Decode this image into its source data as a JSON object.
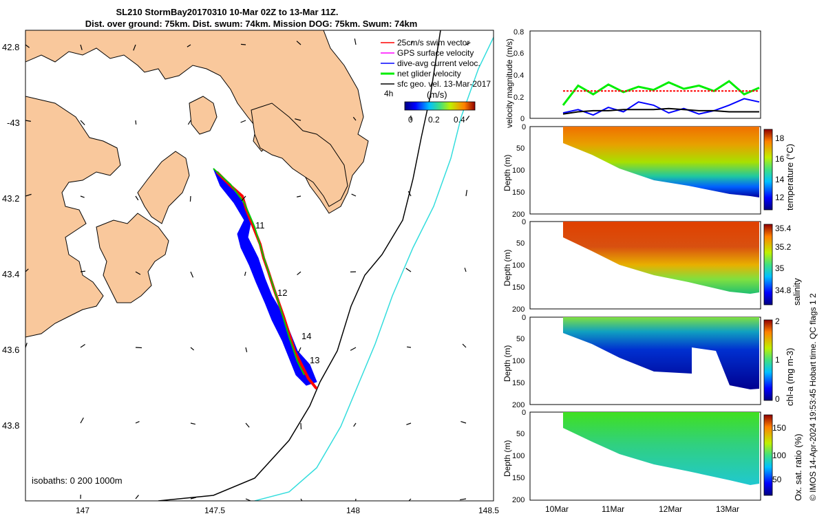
{
  "header": {
    "title_line1": "SL210 StormBay20170310 10-Mar 02Z to 13-Mar 11Z.",
    "title_line2": "Dist. over ground: 75km. Dist. swum: 74km. Mission DOG: 75km. Swum: 74km"
  },
  "colors": {
    "land": "#f9c89c",
    "track_red": "#ff0000",
    "track_blue": "#0000ff",
    "net_green": "#00ee00",
    "isobath_200": "#000000",
    "isobath_1000": "#33dddd"
  },
  "map": {
    "lon_ticks": [
      "147",
      "147.5",
      "148",
      "148.5"
    ],
    "lat_ticks": [
      "42.8",
      "-43",
      "43.2",
      "43.4",
      "43.6",
      "43.8"
    ],
    "isobaths_note": "isobaths: 0   200  1000m",
    "waypoint_labels": [
      "11",
      "12",
      "14",
      "13"
    ],
    "legend": [
      {
        "label": "25cm/s swim vector",
        "color": "#ff0000"
      },
      {
        "label": "GPS surface velocity",
        "color": "#ff00ff"
      },
      {
        "label": "dive-avg current veloc.",
        "color": "#0000ff"
      },
      {
        "label": "net glider velocity",
        "color": "#00ee00"
      },
      {
        "label": "sfc geo. vel. 13-Mar-2017",
        "color": "#000000"
      }
    ],
    "legend_extra": "4h",
    "colorbar_label": "(m/s)",
    "colorbar_ticks": [
      "0",
      "0.2",
      "0.4"
    ]
  },
  "chart_data": [
    {
      "type": "line",
      "title": "",
      "ylabel": "velocity magnitude (m/s)",
      "ylim": [
        0,
        0.8
      ],
      "yticks": [
        "0",
        "0.2",
        "0.4",
        "0.6",
        "0.8"
      ],
      "x": [
        0,
        0.25,
        0.5,
        0.75,
        1.0,
        1.25,
        1.5,
        1.75,
        2.0,
        2.25,
        2.5,
        2.75,
        3.0,
        3.25
      ],
      "series": [
        {
          "name": "net glider velocity",
          "color": "#00ee00",
          "values": [
            0.12,
            0.3,
            0.22,
            0.31,
            0.24,
            0.29,
            0.26,
            0.33,
            0.27,
            0.3,
            0.25,
            0.34,
            0.22,
            0.28
          ]
        },
        {
          "name": "25cm/s swim vector",
          "color": "#ff0000",
          "values": [
            0.25,
            0.25,
            0.25,
            0.25,
            0.25,
            0.25,
            0.25,
            0.25,
            0.25,
            0.25,
            0.25,
            0.25,
            0.25,
            0.25
          ]
        },
        {
          "name": "dive-avg current veloc.",
          "color": "#0000ff",
          "values": [
            0.05,
            0.08,
            0.03,
            0.1,
            0.06,
            0.15,
            0.12,
            0.05,
            0.09,
            0.04,
            0.07,
            0.12,
            0.18,
            0.15
          ]
        },
        {
          "name": "sfc geo. vel. 13-Mar-2017",
          "color": "#000000",
          "values": [
            0.04,
            0.06,
            0.07,
            0.07,
            0.08,
            0.08,
            0.08,
            0.09,
            0.08,
            0.07,
            0.07,
            0.06,
            0.06,
            0.06
          ]
        }
      ]
    },
    {
      "type": "heatmap",
      "ylabel": "Depth (m)",
      "colorbar_label": "temperature (°C)",
      "colorbar_ticks": [
        "12",
        "14",
        "16",
        "18"
      ],
      "ylim": [
        0,
        200
      ],
      "yticks": [
        "0",
        "50",
        "100",
        "150",
        "200"
      ]
    },
    {
      "type": "heatmap",
      "ylabel": "Depth (m)",
      "colorbar_label": "salinity",
      "colorbar_ticks": [
        "34.8",
        "35",
        "35.2",
        "35.4"
      ],
      "ylim": [
        0,
        200
      ],
      "yticks": [
        "0",
        "50",
        "100",
        "150",
        "200"
      ]
    },
    {
      "type": "heatmap",
      "ylabel": "Depth (m)",
      "colorbar_label": "chl-a (mg m-3)",
      "colorbar_ticks": [
        "0",
        "1",
        "2"
      ],
      "ylim": [
        0,
        200
      ],
      "yticks": [
        "0",
        "50",
        "100",
        "150",
        "200"
      ]
    },
    {
      "type": "heatmap",
      "ylabel": "Depth (m)",
      "colorbar_label": "Ox. sat. ratio (%)",
      "colorbar_ticks": [
        "50",
        "100",
        "150"
      ],
      "ylim": [
        0,
        200
      ],
      "yticks": [
        "0",
        "50",
        "100",
        "150",
        "200"
      ],
      "xticks": [
        "10Mar",
        "11Mar",
        "12Mar",
        "13Mar"
      ]
    }
  ],
  "footer": {
    "credit": "© IMOS 14-Apr-2024 19:53:45 Hobart time. QC flags 1  2"
  }
}
